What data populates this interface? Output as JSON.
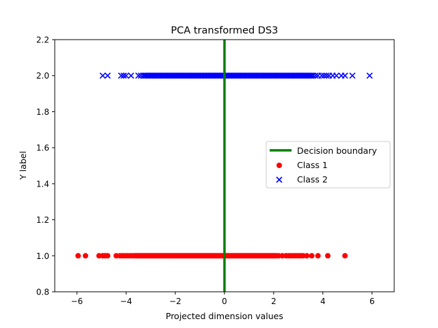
{
  "chart_data": {
    "type": "scatter",
    "title": "PCA transformed DS3",
    "xlabel": "Projected dimension values",
    "ylabel": "Y label",
    "xlim": [
      -6.9,
      6.9
    ],
    "ylim": [
      0.8,
      2.2
    ],
    "xticks": [
      -6,
      -4,
      -2,
      0,
      2,
      4,
      6
    ],
    "yticks": [
      0.8,
      1.0,
      1.2,
      1.4,
      1.6,
      1.8,
      2.0,
      2.2
    ],
    "xtick_labels": [
      "−6",
      "−4",
      "−2",
      "0",
      "2",
      "4",
      "6"
    ],
    "ytick_labels": [
      "0.8",
      "1.0",
      "1.2",
      "1.4",
      "1.6",
      "1.8",
      "2.0",
      "2.2"
    ],
    "grid": false,
    "legend_position": "center-right",
    "decision_boundary": {
      "name": "Decision boundary",
      "x": 0,
      "color": "#008000"
    },
    "series": [
      {
        "name": "Class 1",
        "marker": "circle",
        "color": "#ff0000",
        "y": 1.0,
        "dense_range": [
          -3.6,
          2.1
        ],
        "x": [
          -5.95,
          -5.65,
          -5.1,
          -4.95,
          -4.85,
          -4.75,
          -4.4,
          -4.25,
          -4.15,
          -4.05,
          -3.95,
          -3.85,
          -3.75,
          -3.65,
          2.2,
          2.35,
          2.5,
          2.6,
          2.7,
          2.8,
          2.9,
          3.0,
          3.1,
          3.2,
          3.35,
          3.55,
          3.8,
          4.2,
          4.9
        ]
      },
      {
        "name": "Class 2",
        "marker": "x",
        "color": "#0000ff",
        "y": 2.0,
        "dense_range": [
          -3.3,
          3.6
        ],
        "x": [
          -4.95,
          -4.75,
          -4.2,
          -4.1,
          -4.0,
          -3.8,
          -3.5,
          -3.4,
          3.7,
          3.8,
          3.95,
          4.05,
          4.15,
          4.25,
          4.4,
          4.55,
          4.75,
          4.9,
          5.2,
          5.9
        ]
      }
    ]
  }
}
